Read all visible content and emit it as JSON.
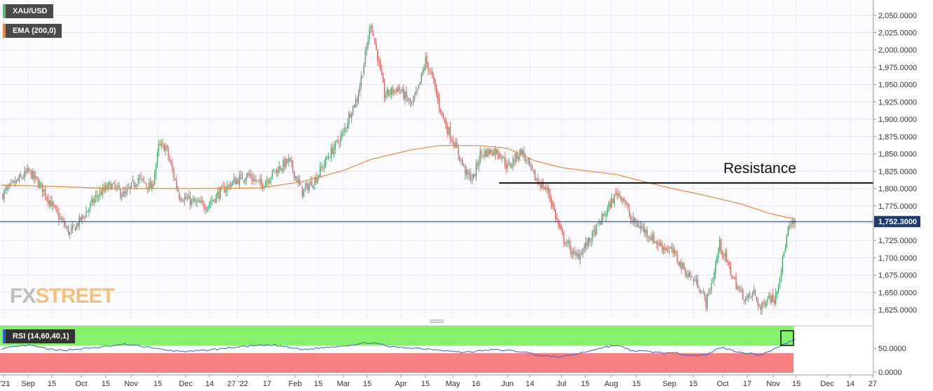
{
  "legend": {
    "symbol": "XAU/USD",
    "ema": "EMA (200,0)",
    "rsi": "RSI (14,60,40,1)"
  },
  "colors": {
    "up": "#3a9a5e",
    "down": "#d9534f",
    "ema": "#e58a3a",
    "rsi_line": "#2f5fd1",
    "rsi_upper_zone": "#86f26b",
    "rsi_lower_zone": "#f77f7f",
    "current_price_bg": "#1e3a6e"
  },
  "annotation": {
    "text": "Resistance",
    "level": 1808
  },
  "current_price": {
    "label": "1,752.3000",
    "value": 1752.3
  },
  "watermark": {
    "fx": "FX",
    "street": "STREET"
  },
  "chart_data": {
    "type": "candlestick",
    "title": "XAU/USD",
    "ylim": [
      1612,
      2072
    ],
    "y_ticks": [
      "2,050.0000",
      "2,025.0000",
      "2,000.0000",
      "1,975.0000",
      "1,950.0000",
      "1,925.0000",
      "1,900.0000",
      "1,875.0000",
      "1,850.0000",
      "1,825.0000",
      "1,800.0000",
      "1,775.0000",
      "1,750.0000",
      "1,725.0000",
      "1,700.0000",
      "1,675.0000",
      "1,650.0000",
      "1,625.0000"
    ],
    "x_ticks": [
      "'21",
      "Sep",
      "15",
      "Oct",
      "15",
      "Nov",
      "15",
      "Dec",
      "14",
      "27 '22",
      "17",
      "Feb",
      "15",
      "Mar",
      "15",
      "Apr",
      "15",
      "May",
      "16",
      "Jun",
      "14",
      "Jul",
      "15",
      "Aug",
      "15",
      "Sep",
      "15",
      "Oct",
      "17",
      "Nov",
      "15",
      "Dec",
      "14",
      "27"
    ],
    "close_anchors": [
      [
        0,
        1790
      ],
      [
        10,
        1808
      ],
      [
        20,
        1825
      ],
      [
        30,
        1800
      ],
      [
        40,
        1765
      ],
      [
        50,
        1735
      ],
      [
        60,
        1760
      ],
      [
        70,
        1790
      ],
      [
        80,
        1805
      ],
      [
        90,
        1790
      ],
      [
        100,
        1815
      ],
      [
        110,
        1800
      ],
      [
        115,
        1860
      ],
      [
        120,
        1860
      ],
      [
        125,
        1825
      ],
      [
        130,
        1790
      ],
      [
        140,
        1780
      ],
      [
        150,
        1775
      ],
      [
        160,
        1795
      ],
      [
        170,
        1810
      ],
      [
        180,
        1820
      ],
      [
        190,
        1805
      ],
      [
        200,
        1825
      ],
      [
        210,
        1840
      ],
      [
        220,
        1795
      ],
      [
        230,
        1815
      ],
      [
        240,
        1850
      ],
      [
        250,
        1880
      ],
      [
        255,
        1910
      ],
      [
        260,
        1930
      ],
      [
        265,
        1980
      ],
      [
        270,
        2040
      ],
      [
        275,
        1990
      ],
      [
        280,
        1935
      ],
      [
        290,
        1945
      ],
      [
        300,
        1920
      ],
      [
        305,
        1945
      ],
      [
        310,
        1985
      ],
      [
        315,
        1960
      ],
      [
        320,
        1920
      ],
      [
        325,
        1890
      ],
      [
        330,
        1870
      ],
      [
        340,
        1820
      ],
      [
        345,
        1815
      ],
      [
        350,
        1850
      ],
      [
        360,
        1855
      ],
      [
        365,
        1850
      ],
      [
        370,
        1830
      ],
      [
        380,
        1855
      ],
      [
        390,
        1815
      ],
      [
        400,
        1795
      ],
      [
        405,
        1760
      ],
      [
        410,
        1730
      ],
      [
        420,
        1700
      ],
      [
        430,
        1725
      ],
      [
        440,
        1760
      ],
      [
        450,
        1795
      ],
      [
        455,
        1785
      ],
      [
        460,
        1755
      ],
      [
        470,
        1740
      ],
      [
        480,
        1720
      ],
      [
        490,
        1710
      ],
      [
        500,
        1680
      ],
      [
        510,
        1660
      ],
      [
        515,
        1635
      ],
      [
        520,
        1670
      ],
      [
        525,
        1720
      ],
      [
        530,
        1695
      ],
      [
        535,
        1670
      ],
      [
        540,
        1650
      ],
      [
        545,
        1640
      ],
      [
        550,
        1650
      ],
      [
        555,
        1625
      ],
      [
        560,
        1645
      ],
      [
        565,
        1640
      ],
      [
        570,
        1685
      ],
      [
        575,
        1740
      ],
      [
        580,
        1752.3
      ]
    ],
    "ema_anchors": [
      [
        0,
        1805
      ],
      [
        40,
        1803
      ],
      [
        80,
        1800
      ],
      [
        120,
        1800
      ],
      [
        150,
        1800
      ],
      [
        190,
        1801
      ],
      [
        220,
        1810
      ],
      [
        250,
        1826
      ],
      [
        270,
        1842
      ],
      [
        300,
        1856
      ],
      [
        320,
        1862
      ],
      [
        350,
        1862
      ],
      [
        370,
        1858
      ],
      [
        390,
        1840
      ],
      [
        410,
        1830
      ],
      [
        430,
        1825
      ],
      [
        450,
        1820
      ],
      [
        470,
        1810
      ],
      [
        490,
        1800
      ],
      [
        510,
        1792
      ],
      [
        540,
        1778
      ],
      [
        560,
        1765
      ],
      [
        575,
        1758
      ],
      [
        580,
        1757
      ]
    ],
    "candle_count": 581,
    "rsi": {
      "ylim": [
        0,
        100
      ],
      "y_ticks": [
        "50.0000",
        "0.0000"
      ],
      "upper": 60,
      "lower": 40,
      "anchors": [
        [
          0,
          52
        ],
        [
          20,
          60
        ],
        [
          40,
          48
        ],
        [
          60,
          52
        ],
        [
          80,
          58
        ],
        [
          90,
          62
        ],
        [
          110,
          55
        ],
        [
          120,
          48
        ],
        [
          140,
          46
        ],
        [
          160,
          52
        ],
        [
          180,
          58
        ],
        [
          200,
          60
        ],
        [
          220,
          50
        ],
        [
          240,
          56
        ],
        [
          260,
          62
        ],
        [
          270,
          66
        ],
        [
          285,
          56
        ],
        [
          300,
          54
        ],
        [
          320,
          50
        ],
        [
          335,
          44
        ],
        [
          345,
          46
        ],
        [
          360,
          50
        ],
        [
          380,
          46
        ],
        [
          395,
          36
        ],
        [
          410,
          34
        ],
        [
          420,
          40
        ],
        [
          440,
          55
        ],
        [
          450,
          60
        ],
        [
          460,
          48
        ],
        [
          480,
          44
        ],
        [
          500,
          40
        ],
        [
          515,
          36
        ],
        [
          525,
          56
        ],
        [
          535,
          48
        ],
        [
          545,
          42
        ],
        [
          555,
          38
        ],
        [
          565,
          52
        ],
        [
          572,
          62
        ],
        [
          578,
          70
        ],
        [
          580,
          72
        ]
      ]
    }
  }
}
